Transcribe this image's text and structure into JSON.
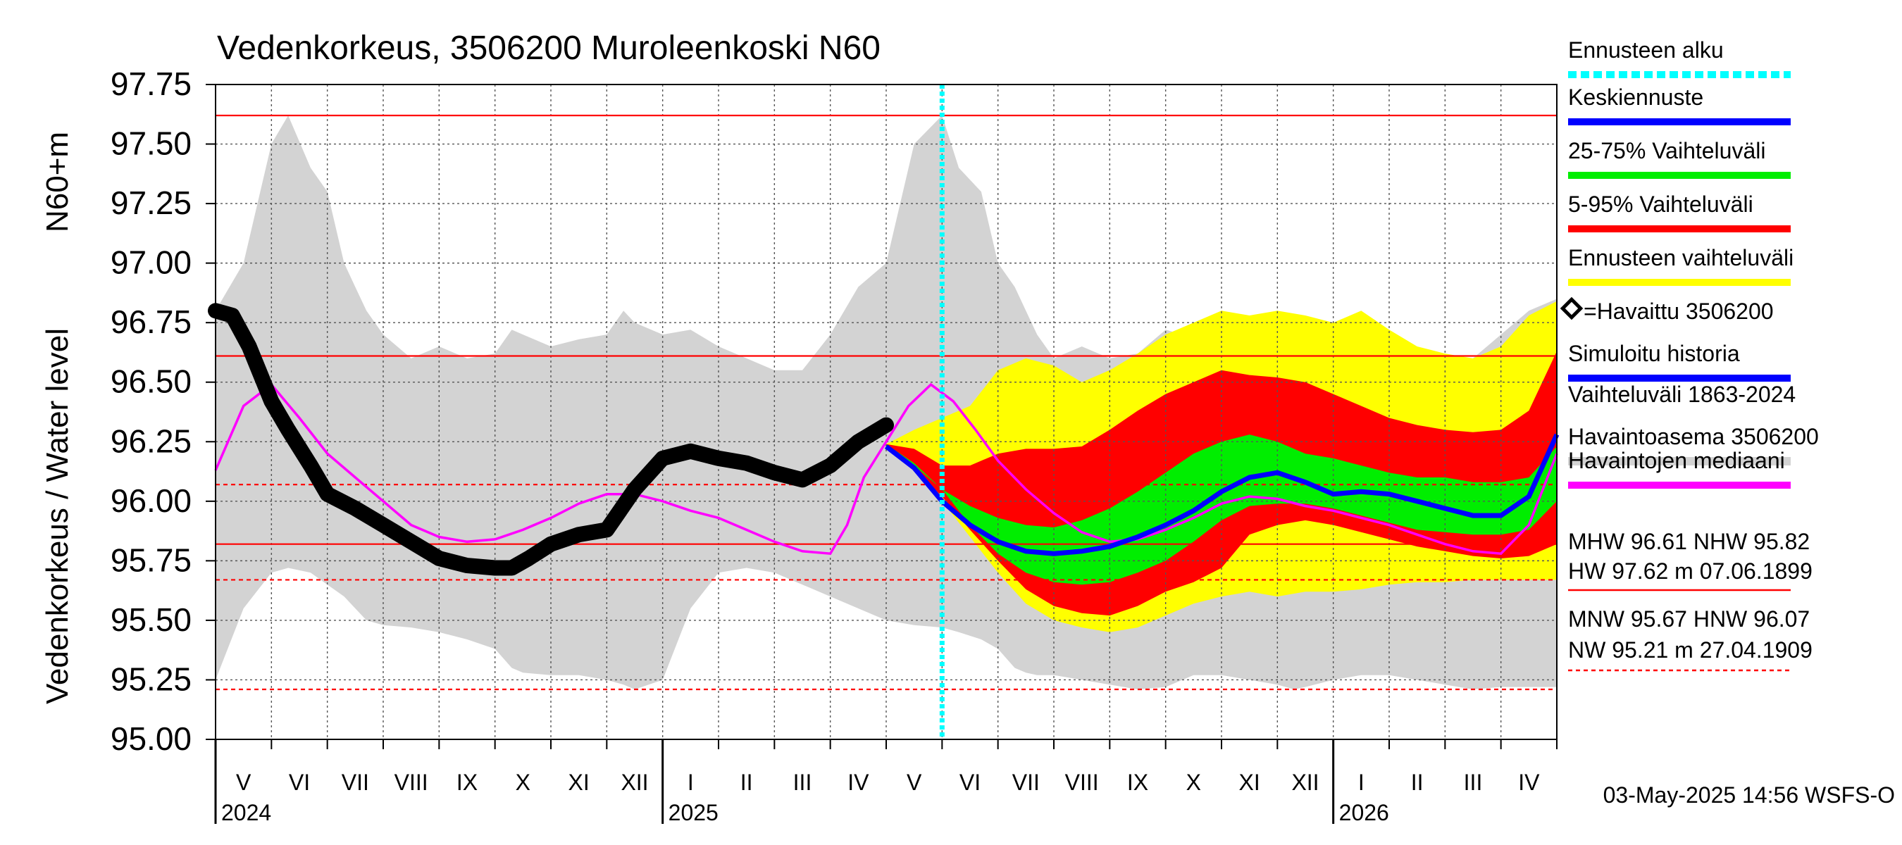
{
  "chart_data": {
    "type": "line",
    "title": "Vedenkorkeus, 3506200 Muroleenkoski N60",
    "ylabel": "Vedenkorkeus / Water level",
    "ylabel_unit": "N60+m",
    "ylim": [
      95.0,
      97.75
    ],
    "yticks": [
      "95.00",
      "95.25",
      "95.50",
      "95.75",
      "96.00",
      "96.25",
      "96.50",
      "96.75",
      "97.00",
      "97.25",
      "97.50",
      "97.75"
    ],
    "x_range": [
      "2024-04-03",
      "2026-05-03"
    ],
    "month_ticks": [
      "V",
      "VI",
      "VII",
      "VIII",
      "IX",
      "X",
      "XI",
      "XII",
      "I",
      "II",
      "III",
      "IV",
      "V",
      "VI",
      "VII",
      "VIII",
      "IX",
      "X",
      "XI",
      "XII",
      "I",
      "II",
      "III",
      "IV"
    ],
    "year_labels": [
      {
        "label": "2024",
        "month_index": 0
      },
      {
        "label": "2025",
        "month_index": 8
      },
      {
        "label": "2026",
        "month_index": 20
      }
    ],
    "forecast_start": "2025-05-03",
    "reference_lines": {
      "solid": [
        {
          "name": "HW",
          "value": 97.62
        },
        {
          "name": "MHW",
          "value": 96.61
        },
        {
          "name": "NHW",
          "value": 95.82
        }
      ],
      "dashed": [
        {
          "name": "HNW",
          "value": 96.07
        },
        {
          "name": "MNW",
          "value": 95.67
        },
        {
          "name": "NW",
          "value": 95.21
        }
      ]
    },
    "historical_range": {
      "x": [
        0,
        0.5,
        1,
        1.3,
        1.7,
        2,
        2.3,
        2.5,
        2.7,
        3,
        3.5,
        4,
        4.5,
        5,
        5.3,
        5.5,
        6,
        6.5,
        7,
        7.3,
        7.5,
        8,
        8.5,
        9,
        9.5,
        10,
        10.5,
        11,
        11.5,
        12,
        12.5,
        13,
        13.3,
        13.7,
        14,
        14.3,
        14.5,
        14.7,
        15,
        15.5,
        16,
        16.5,
        17,
        17.3,
        17.5,
        18,
        18.5,
        19,
        19.3,
        19.5,
        20,
        20.5,
        21,
        21.5,
        22,
        22.5,
        23,
        23.5,
        24
      ],
      "upper": [
        96.8,
        97.0,
        97.5,
        97.62,
        97.4,
        97.3,
        97.0,
        96.9,
        96.8,
        96.7,
        96.6,
        96.65,
        96.6,
        96.62,
        96.72,
        96.7,
        96.65,
        96.68,
        96.7,
        96.8,
        96.75,
        96.7,
        96.72,
        96.65,
        96.6,
        96.55,
        96.55,
        96.7,
        96.9,
        97.0,
        97.5,
        97.62,
        97.4,
        97.3,
        97.0,
        96.9,
        96.8,
        96.7,
        96.6,
        96.65,
        96.6,
        96.62,
        96.72,
        96.7,
        96.65,
        96.68,
        96.7,
        96.8,
        96.75,
        96.7,
        96.72,
        96.65,
        96.6,
        96.55,
        96.55,
        96.6,
        96.7,
        96.8,
        96.85
      ],
      "lower": [
        95.25,
        95.55,
        95.7,
        95.72,
        95.7,
        95.65,
        95.6,
        95.55,
        95.5,
        95.48,
        95.47,
        95.45,
        95.42,
        95.38,
        95.3,
        95.28,
        95.27,
        95.27,
        95.25,
        95.23,
        95.21,
        95.25,
        95.55,
        95.7,
        95.72,
        95.7,
        95.65,
        95.6,
        95.55,
        95.5,
        95.48,
        95.47,
        95.45,
        95.42,
        95.38,
        95.3,
        95.28,
        95.27,
        95.27,
        95.25,
        95.23,
        95.21,
        95.22,
        95.25,
        95.27,
        95.27,
        95.25,
        95.23,
        95.21,
        95.22,
        95.25,
        95.27,
        95.27,
        95.25,
        95.23,
        95.21,
        95.22,
        95.22,
        95.22
      ]
    },
    "observed": {
      "name": "Havaittu 3506200",
      "x": [
        0,
        0.3,
        0.6,
        1.0,
        1.3,
        1.7,
        2.0,
        2.5,
        3.0,
        3.5,
        4.0,
        4.5,
        5.0,
        5.3,
        5.6,
        6.0,
        6.5,
        7.0,
        7.5,
        8.0,
        8.5,
        9.0,
        9.5,
        10.0,
        10.5,
        11.0,
        11.5,
        12.0
      ],
      "y": [
        96.8,
        96.78,
        96.65,
        96.42,
        96.3,
        96.15,
        96.03,
        95.97,
        95.9,
        95.83,
        95.76,
        95.73,
        95.72,
        95.72,
        95.76,
        95.82,
        95.86,
        95.88,
        96.05,
        96.18,
        96.21,
        96.18,
        96.16,
        96.12,
        96.09,
        96.15,
        96.25,
        96.32
      ]
    },
    "median": {
      "name": "Havaintojen mediaani",
      "x": [
        0,
        0.5,
        1,
        1.5,
        2,
        2.5,
        3,
        3.5,
        4,
        4.5,
        5,
        5.5,
        6,
        6.5,
        7,
        7.5,
        8,
        8.5,
        9,
        9.5,
        10,
        10.5,
        11,
        11.3,
        11.6,
        12,
        12.4,
        12.8,
        13.2,
        13.6,
        14,
        14.5,
        15,
        15.5,
        16,
        16.5,
        17,
        17.5,
        18,
        18.5,
        19,
        19.5,
        20,
        20.5,
        21,
        21.5,
        22,
        22.5,
        23,
        23.5,
        24
      ],
      "y": [
        96.13,
        96.4,
        96.49,
        96.35,
        96.2,
        96.1,
        96.0,
        95.9,
        95.85,
        95.83,
        95.84,
        95.88,
        95.93,
        95.99,
        96.03,
        96.03,
        96.0,
        95.96,
        95.93,
        95.88,
        95.83,
        95.79,
        95.78,
        95.9,
        96.1,
        96.25,
        96.4,
        96.49,
        96.42,
        96.3,
        96.17,
        96.05,
        95.95,
        95.87,
        95.83,
        95.84,
        95.88,
        95.93,
        95.99,
        96.02,
        96.01,
        95.98,
        95.96,
        95.93,
        95.9,
        95.86,
        95.82,
        95.79,
        95.78,
        95.9,
        96.2
      ]
    },
    "forecast_x": [
      12.0,
      12.5,
      13.0,
      13.5,
      14.0,
      14.5,
      15.0,
      15.5,
      16.0,
      16.5,
      17.0,
      17.5,
      18.0,
      18.5,
      19.0,
      19.5,
      20.0,
      20.5,
      21.0,
      21.5,
      22.0,
      22.5,
      23.0,
      23.5,
      24.0
    ],
    "forecast_bands": [
      {
        "name": "Ennusteen vaihteluväli",
        "color": "#ffff00",
        "upper": [
          96.24,
          96.3,
          96.35,
          96.4,
          96.55,
          96.6,
          96.57,
          96.5,
          96.55,
          96.62,
          96.7,
          96.75,
          96.8,
          96.78,
          96.8,
          96.78,
          96.75,
          96.8,
          96.72,
          96.65,
          96.62,
          96.6,
          96.65,
          96.78,
          96.84
        ],
        "lower": [
          96.23,
          96.13,
          96.0,
          95.85,
          95.7,
          95.57,
          95.5,
          95.47,
          95.45,
          95.47,
          95.52,
          95.57,
          95.6,
          95.62,
          95.6,
          95.62,
          95.62,
          95.63,
          95.65,
          95.66,
          95.66,
          95.67,
          95.67,
          95.67,
          95.67
        ]
      },
      {
        "name": "5-95% Vaihteluväli",
        "color": "#ff0000",
        "upper": [
          96.24,
          96.22,
          96.15,
          96.15,
          96.2,
          96.22,
          96.22,
          96.23,
          96.3,
          96.38,
          96.45,
          96.5,
          96.55,
          96.53,
          96.52,
          96.5,
          96.45,
          96.4,
          96.35,
          96.32,
          96.3,
          96.29,
          96.3,
          96.38,
          96.63
        ],
        "lower": [
          96.23,
          96.14,
          96.02,
          95.88,
          95.75,
          95.63,
          95.56,
          95.53,
          95.52,
          95.56,
          95.62,
          95.66,
          95.72,
          95.86,
          95.9,
          95.92,
          95.9,
          95.87,
          95.84,
          95.81,
          95.79,
          95.77,
          95.76,
          95.77,
          95.82
        ]
      },
      {
        "name": "25-75% Vaihteluväli",
        "color": "#00ee00",
        "upper": [
          96.24,
          96.16,
          96.05,
          95.98,
          95.93,
          95.9,
          95.89,
          95.92,
          95.97,
          96.04,
          96.12,
          96.2,
          96.25,
          96.28,
          96.25,
          96.2,
          96.18,
          96.15,
          96.12,
          96.1,
          96.1,
          96.08,
          96.08,
          96.1,
          96.23
        ],
        "lower": [
          96.23,
          96.15,
          96.05,
          95.9,
          95.78,
          95.7,
          95.66,
          95.65,
          95.66,
          95.7,
          95.75,
          95.83,
          95.92,
          95.98,
          95.99,
          95.99,
          95.97,
          95.94,
          95.91,
          95.88,
          95.87,
          95.86,
          95.86,
          95.88,
          96.0
        ]
      }
    ],
    "forecast_mean": {
      "name": "Keskiennuste",
      "y": [
        96.23,
        96.14,
        96.0,
        95.9,
        95.83,
        95.79,
        95.78,
        95.79,
        95.81,
        95.85,
        95.9,
        95.96,
        96.04,
        96.1,
        96.12,
        96.08,
        96.03,
        96.04,
        96.03,
        96.0,
        95.97,
        95.94,
        95.94,
        96.02,
        96.28
      ]
    },
    "legend": [
      {
        "label": "Ennusteen alku",
        "color": "#00ffff",
        "style": "dotted"
      },
      {
        "label": "Keskiennuste",
        "color": "#0000ff",
        "style": "solid"
      },
      {
        "label": "25-75% Vaihteluväli",
        "color": "#00ee00",
        "style": "solid"
      },
      {
        "label": "5-95% Vaihteluväli",
        "color": "#ff0000",
        "style": "solid"
      },
      {
        "label": "Ennusteen vaihteluväli",
        "color": "#ffff00",
        "style": "solid"
      },
      {
        "label": "=Havaittu 3506200",
        "color": "#000000",
        "style": "marker"
      },
      {
        "label": "Simuloitu historia",
        "color": "#0000ff",
        "style": "solid"
      },
      {
        "label": "Vaihteluväli 1863-2024",
        "color": "#d3d3d3",
        "style": "none"
      },
      {
        "label": " Havaintoasema 3506200",
        "color": "#d3d3d3",
        "style": "solid"
      },
      {
        "label": "Havaintojen mediaani",
        "color": "#ff00ff",
        "style": "solid"
      }
    ],
    "stats": {
      "line1": "MHW  96.61 NHW  95.82",
      "line2": "HW  97.62 m 07.06.1899",
      "line3": "MNW  95.67 HNW  96.07",
      "line4": "NW  95.21 m 27.04.1909"
    },
    "timestamp": "03-May-2025 14:56 WSFS-O"
  }
}
